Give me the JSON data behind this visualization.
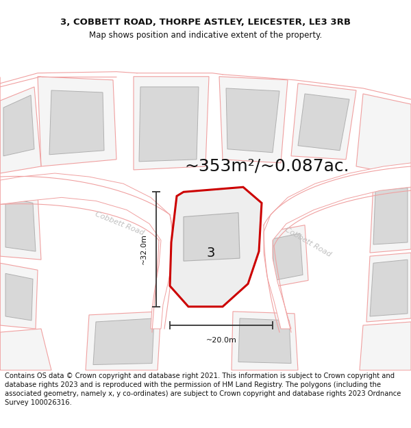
{
  "title_line1": "3, COBBETT ROAD, THORPE ASTLEY, LEICESTER, LE3 3RB",
  "title_line2": "Map shows position and indicative extent of the property.",
  "area_text": "~353m²/~0.087ac.",
  "number_label": "3",
  "road_label_left": "Cobbett Road",
  "road_label_right": "Cobbett Road",
  "dim_vertical": "~32.0m",
  "dim_horizontal": "~20.0m",
  "footer_text": "Contains OS data © Crown copyright and database right 2021. This information is subject to Crown copyright and database rights 2023 and is reproduced with the permission of HM Land Registry. The polygons (including the associated geometry, namely x, y co-ordinates) are subject to Crown copyright and database rights 2023 Ordnance Survey 100026316.",
  "bg_color": "#ffffff",
  "plot_edge": "#cc0000",
  "plot_fill": "#eeeeee",
  "building_fill": "#d8d8d8",
  "building_edge": "#b0b0b0",
  "road_fill": "#ffffff",
  "road_edge": "#f0a0a0",
  "surround_fill": "#f5f5f5",
  "surround_edge": "#f0a0a0",
  "dim_color": "#333333",
  "road_text_color": "#c0c0c0",
  "title_fontsize": 9.5,
  "subtitle_fontsize": 8.5,
  "area_fontsize": 18,
  "footer_fontsize": 7.2
}
